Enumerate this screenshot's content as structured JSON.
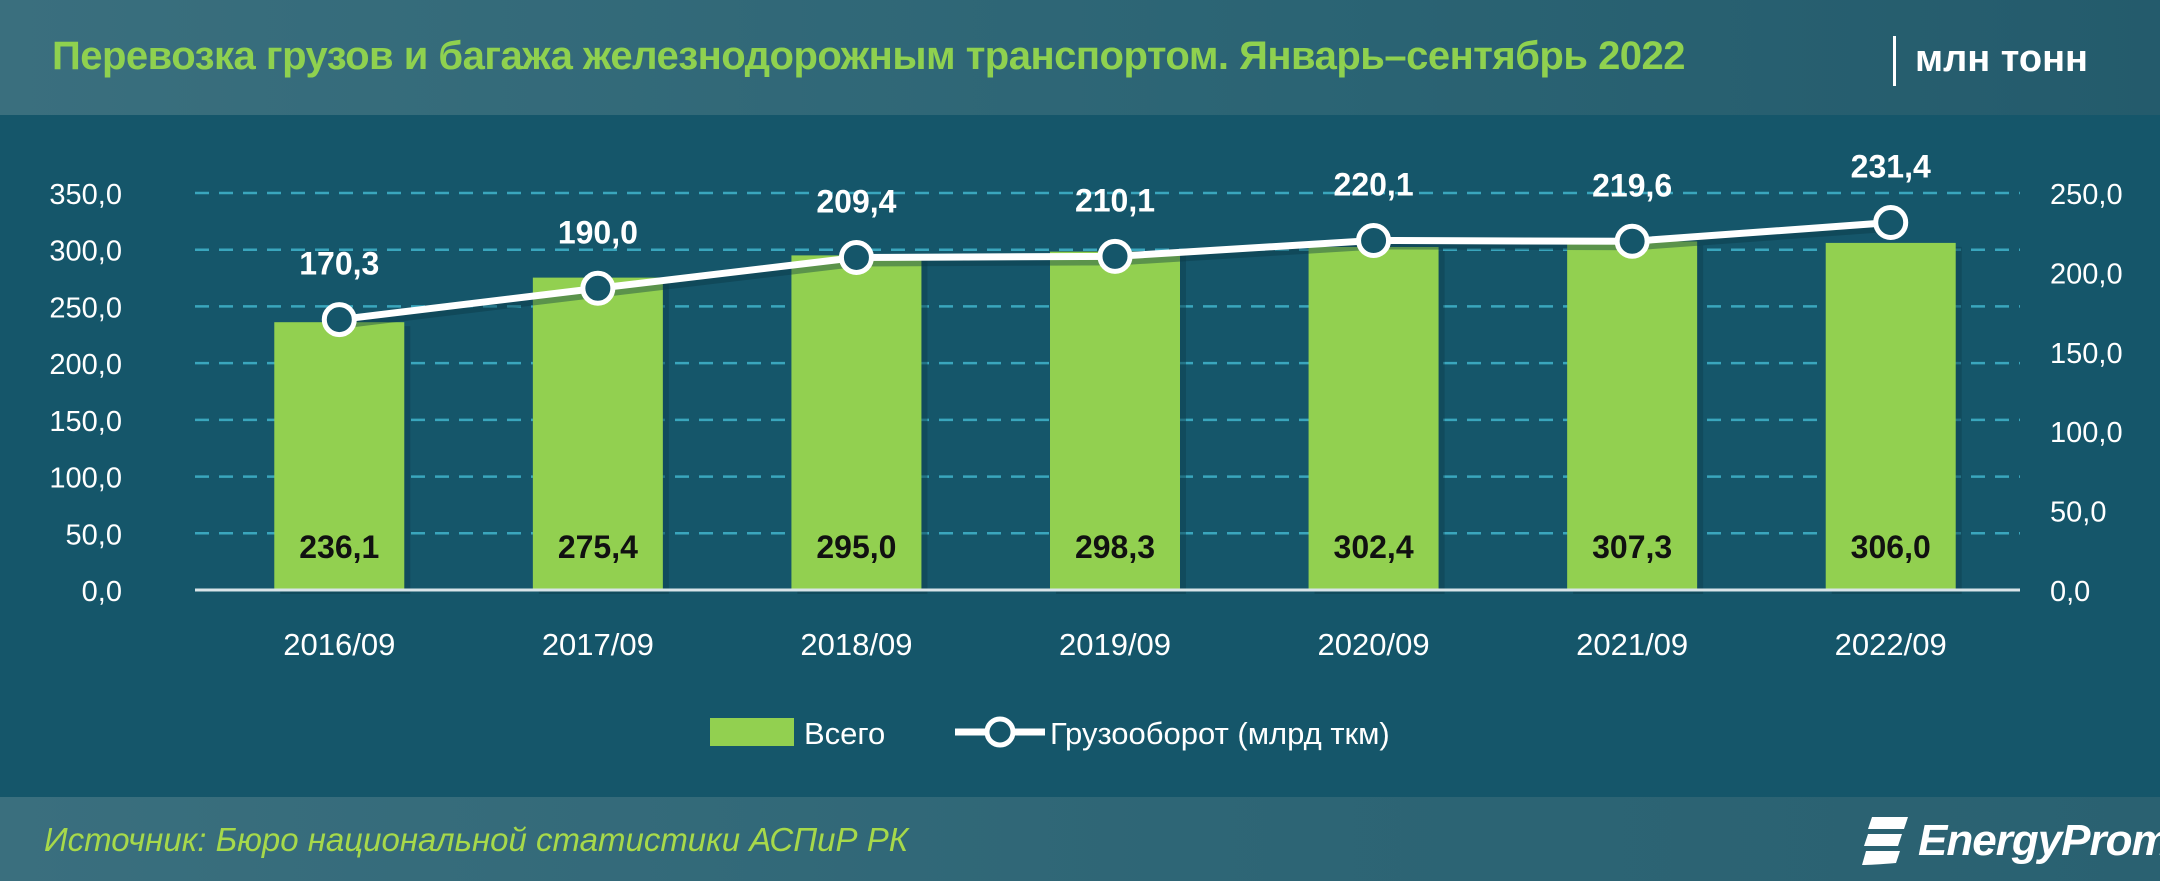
{
  "header": {
    "title": "Перевозка грузов и багажа железнодорожным транспортом. Январь–сентябрь 2022",
    "unit": "млн тонн"
  },
  "footer": {
    "source": "Источник: Бюро национальной статистики АСПиР РК",
    "logo_text": "EnergyProm"
  },
  "colors": {
    "background": "#15566a",
    "bar": "#92d050",
    "line": "#ffffff",
    "grid": "#3aa6bd",
    "title": "#8fd14f",
    "source": "#a7d94a"
  },
  "chart_data": {
    "type": "bar+line",
    "title": "Перевозка грузов и багажа железнодорожным транспортом. Январь–сентябрь 2022",
    "categories": [
      "2016/09",
      "2017/09",
      "2018/09",
      "2019/09",
      "2020/09",
      "2021/09",
      "2022/09"
    ],
    "series": [
      {
        "name": "Всего",
        "type": "bar",
        "axis": "left",
        "values": [
          236.1,
          275.4,
          295.0,
          298.3,
          302.4,
          307.3,
          306.0
        ],
        "labels": [
          "236,1",
          "275,4",
          "295,0",
          "298,3",
          "302,4",
          "307,3",
          "306,0"
        ]
      },
      {
        "name": "Грузооборот (млрд ткм)",
        "type": "line",
        "axis": "right",
        "values": [
          170.3,
          190.0,
          209.4,
          210.1,
          220.1,
          219.6,
          231.4
        ],
        "labels": [
          "170,3",
          "190,0",
          "209,4",
          "210,1",
          "220,1",
          "219,6",
          "231,4"
        ]
      }
    ],
    "left_axis": {
      "ylim": [
        0,
        350
      ],
      "ticks": [
        "0,0",
        "50,0",
        "100,0",
        "150,0",
        "200,0",
        "250,0",
        "300,0",
        "350,0"
      ],
      "unit": "млн тонн"
    },
    "right_axis": {
      "ylim": [
        0,
        250
      ],
      "ticks": [
        "0,0",
        "50,0",
        "100,0",
        "150,0",
        "200,0",
        "250,0"
      ],
      "unit": "млрд ткм"
    },
    "grid": true,
    "legend_position": "bottom",
    "legend": [
      "Всего",
      "Грузооборот (млрд ткм)"
    ]
  }
}
